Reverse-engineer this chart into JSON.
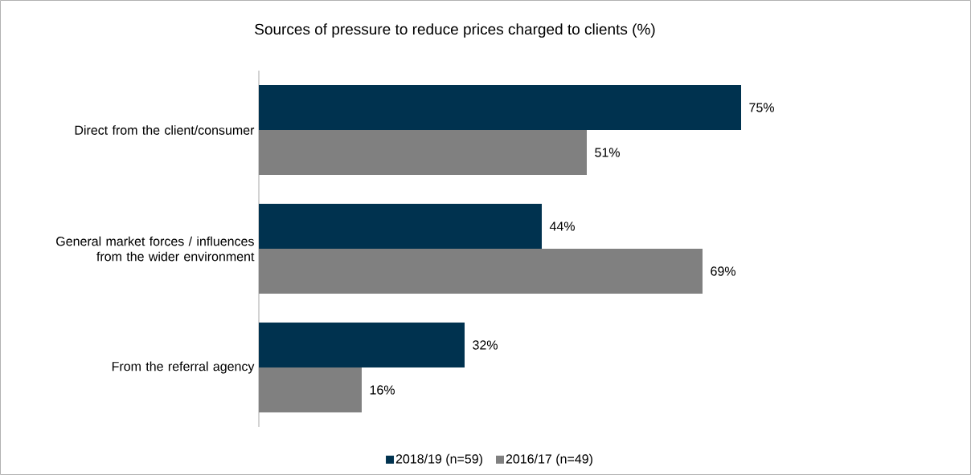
{
  "chart_data": {
    "type": "bar",
    "orientation": "horizontal",
    "title": "Sources of pressure to reduce prices charged to clients (%)",
    "categories": [
      "Direct from the client/consumer",
      "General market forces / influences from the wider environment",
      "From the referral agency"
    ],
    "series": [
      {
        "name": "2018/19 (n=59)",
        "color": "#00324f",
        "values": [
          75,
          44,
          32
        ],
        "value_labels": [
          "75%",
          "44%",
          "32%"
        ]
      },
      {
        "name": "2016/17 (n=49)",
        "color": "#808080",
        "values": [
          51,
          69,
          16
        ],
        "value_labels": [
          "51%",
          "69%",
          "16%"
        ]
      }
    ],
    "legend": "bottom"
  }
}
